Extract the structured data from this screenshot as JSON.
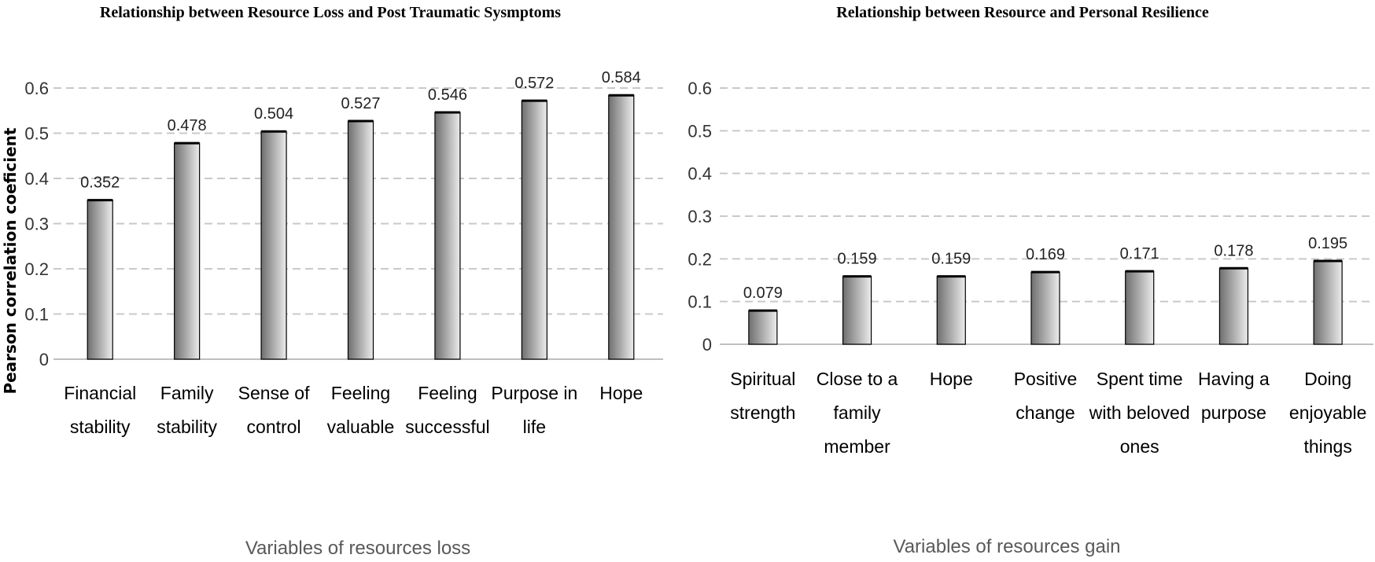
{
  "chart_data": [
    {
      "type": "bar",
      "title": "Relationship between Resource Loss and Post Traumatic Sysmptoms",
      "xlabel": "Variables of resources loss",
      "ylabel": "Pearson correlation coeficient",
      "ylim": [
        0,
        0.6
      ],
      "yticks": [
        "0",
        "0.1",
        "0.2",
        "0.3",
        "0.4",
        "0.5",
        "0.6"
      ],
      "grid": true,
      "categories": [
        [
          "Financial",
          "stability"
        ],
        [
          "Family",
          "stability"
        ],
        [
          "Sense of",
          "control"
        ],
        [
          "Feeling",
          "valuable"
        ],
        [
          "Feeling",
          "successful"
        ],
        [
          "Purpose in",
          "life"
        ],
        [
          "Hope"
        ]
      ],
      "values": [
        0.352,
        0.478,
        0.504,
        0.527,
        0.546,
        0.572,
        0.584
      ],
      "value_labels": [
        "0.352",
        "0.478",
        "0.504",
        "0.527",
        "0.546",
        "0.572",
        "0.584"
      ]
    },
    {
      "type": "bar",
      "title": "Relationship between Resource and Personal Resilience",
      "xlabel": "Variables of resources gain",
      "ylabel": "",
      "ylim": [
        0,
        0.6
      ],
      "yticks": [
        "0",
        "0.1",
        "0.2",
        "0.3",
        "0.4",
        "0.5",
        "0.6"
      ],
      "grid": true,
      "categories": [
        [
          "Spiritual",
          "strength"
        ],
        [
          "Close to a",
          "family",
          "member"
        ],
        [
          "Hope"
        ],
        [
          "Positive",
          "change"
        ],
        [
          "Spent time",
          "with beloved",
          "ones"
        ],
        [
          "Having a",
          "purpose"
        ],
        [
          "Doing",
          "enjoyable",
          "things"
        ]
      ],
      "values": [
        0.079,
        0.159,
        0.159,
        0.169,
        0.171,
        0.178,
        0.195
      ],
      "value_labels": [
        "0.079",
        "0.159",
        "0.159",
        "0.169",
        "0.171",
        "0.178",
        "0.195"
      ]
    }
  ],
  "colors": {
    "bar_light": "#ececec",
    "bar_dark": "#6f6f6f",
    "grid": "#c9c9c9"
  }
}
